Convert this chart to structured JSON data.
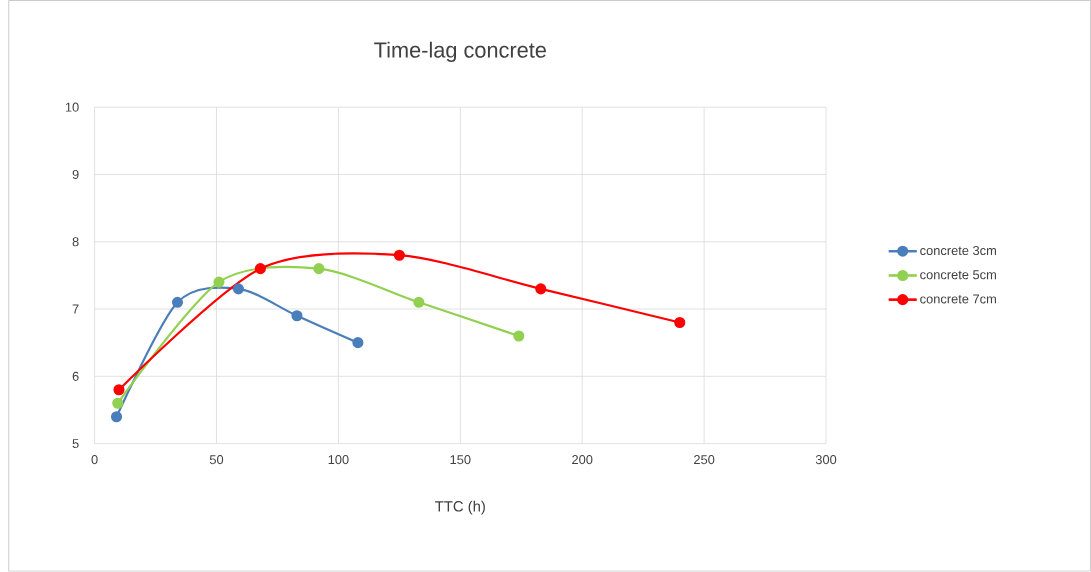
{
  "chart_data": {
    "type": "line",
    "title": "Time-lag concrete",
    "xlabel": "TTC (h)",
    "xlim": [
      0,
      300
    ],
    "xticks": [
      0,
      50,
      100,
      150,
      200,
      250,
      300
    ],
    "ylim": [
      5,
      10
    ],
    "yticks": [
      5,
      6,
      7,
      8,
      9,
      10
    ],
    "grid": true,
    "legend": "right",
    "marker": "circle",
    "line_style": "solid",
    "series": [
      {
        "name": "concrete 3cm",
        "color": "#4a7ebb",
        "x": [
          9,
          34,
          59,
          83,
          108
        ],
        "values": [
          5.4,
          7.1,
          7.3,
          6.9,
          6.5
        ]
      },
      {
        "name": "concrete 5cm",
        "color": "#92d050",
        "x": [
          9.5,
          51,
          92,
          133,
          174
        ],
        "values": [
          5.6,
          7.4,
          7.6,
          7.1,
          6.6
        ]
      },
      {
        "name": "concrete 7cm",
        "color": "#ff0000",
        "x": [
          10,
          68,
          125,
          183,
          240
        ],
        "values": [
          5.8,
          7.6,
          7.8,
          7.3,
          6.8
        ]
      }
    ]
  }
}
